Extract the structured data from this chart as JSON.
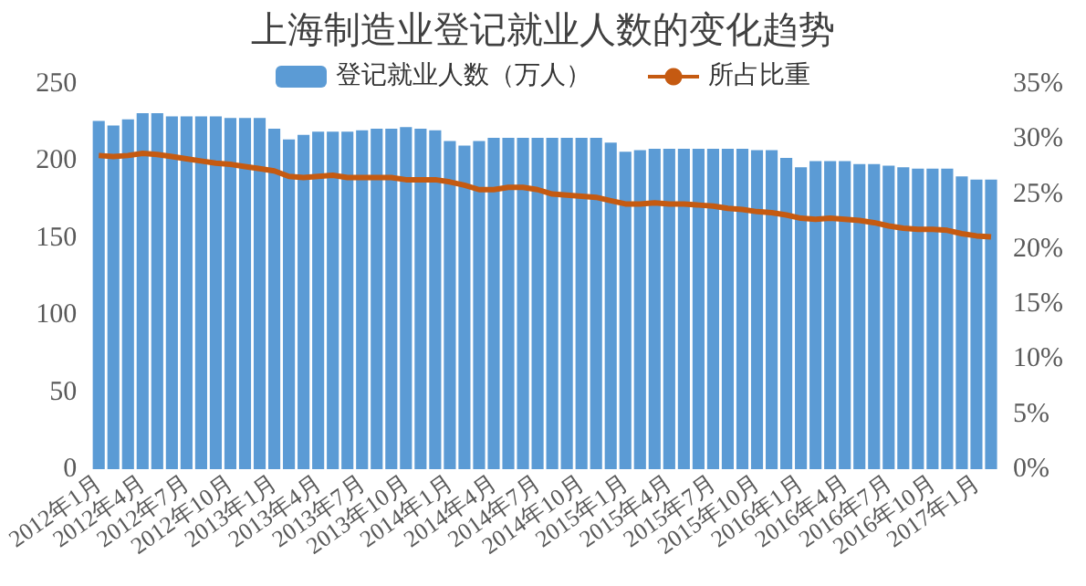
{
  "chart_data": {
    "type": "bar",
    "title": "上海制造业登记就业人数的变化趋势",
    "categories": [
      "2012年1月",
      null,
      null,
      "2012年4月",
      null,
      null,
      "2012年7月",
      null,
      null,
      "2012年10月",
      null,
      null,
      "2013年1月",
      null,
      null,
      "2013年4月",
      null,
      null,
      "2013年7月",
      null,
      null,
      "2013年10月",
      null,
      null,
      "2014年1月",
      null,
      null,
      "2014年4月",
      null,
      null,
      "2014年7月",
      null,
      null,
      "2014年10月",
      null,
      null,
      "2015年1月",
      null,
      null,
      "2015年4月",
      null,
      null,
      "2015年7月",
      null,
      null,
      "2015年10月",
      null,
      null,
      "2016年1月",
      null,
      null,
      "2016年4月",
      null,
      null,
      "2016年7月",
      null,
      null,
      "2016年10月",
      null,
      null,
      "2017年1月",
      null
    ],
    "series": [
      {
        "name": "登记就业人数（万人）",
        "color": "#5b9bd5",
        "values": [
          226,
          223,
          227,
          231,
          231,
          229,
          229,
          229,
          229,
          228,
          228,
          228,
          221,
          214,
          217,
          219,
          219,
          219,
          220,
          221,
          221,
          222,
          221,
          220,
          213,
          210,
          213,
          215,
          215,
          215,
          215,
          215,
          215,
          215,
          215,
          212,
          206,
          207,
          208,
          208,
          208,
          208,
          208,
          208,
          208,
          207,
          207,
          202,
          196,
          200,
          200,
          200,
          198,
          198,
          197,
          196,
          195,
          195,
          195,
          190,
          188,
          188
        ]
      },
      {
        "name": "所占比重",
        "type": "line",
        "axis": "y2",
        "color": "#c55a11",
        "marker": "none",
        "values": [
          28.5,
          28.4,
          28.5,
          28.7,
          28.6,
          28.4,
          28.2,
          28.0,
          27.8,
          27.7,
          27.5,
          27.3,
          27.1,
          26.6,
          26.5,
          26.6,
          26.7,
          26.5,
          26.5,
          26.5,
          26.5,
          26.3,
          26.3,
          26.3,
          26.1,
          25.8,
          25.4,
          25.4,
          25.6,
          25.6,
          25.4,
          25.0,
          24.9,
          24.8,
          24.7,
          24.4,
          24.1,
          24.1,
          24.2,
          24.1,
          24.1,
          24.0,
          23.9,
          23.7,
          23.6,
          23.4,
          23.3,
          23.1,
          22.8,
          22.7,
          22.8,
          22.7,
          22.6,
          22.4,
          22.1,
          21.9,
          21.8,
          21.8,
          21.7,
          21.4,
          21.2,
          21.1
        ]
      }
    ],
    "ylim": [
      0,
      250
    ],
    "yticks": [
      0,
      50,
      100,
      150,
      200,
      250
    ],
    "y2lim": [
      0,
      35
    ],
    "y2ticks": [
      {
        "value": 0,
        "label": "0%"
      },
      {
        "value": 5,
        "label": "5%"
      },
      {
        "value": 10,
        "label": "10%"
      },
      {
        "value": 15,
        "label": "15%"
      },
      {
        "value": 20,
        "label": "20%"
      },
      {
        "value": 25,
        "label": "25%"
      },
      {
        "value": 30,
        "label": "30%"
      },
      {
        "value": 35,
        "label": "35%"
      }
    ],
    "legend": "top",
    "grid": false
  }
}
